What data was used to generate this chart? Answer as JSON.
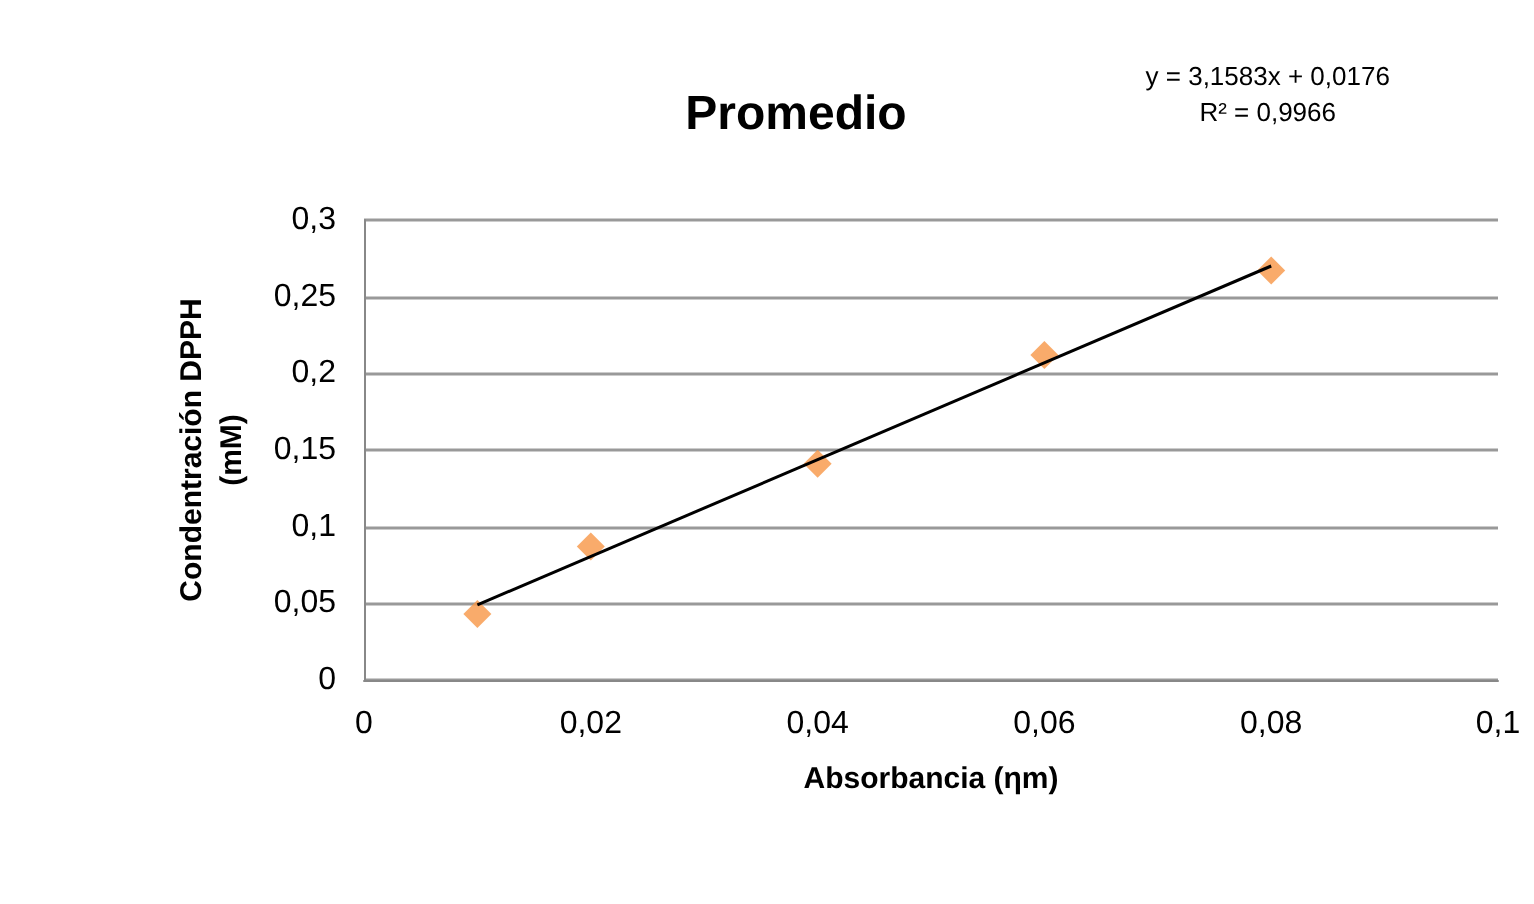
{
  "chart_data": {
    "type": "scatter",
    "title": "Promedio",
    "xlabel": "Absorbancia (ηm)",
    "ylabel": "Condentración DPPH (mM)",
    "annotations": [
      "y = 3,1583x + 0,0176",
      "R² = 0,9966"
    ],
    "marker": "diamond",
    "grid": "y",
    "xlim": [
      0,
      0.1
    ],
    "xticks": [
      {
        "value": 0,
        "label": "0"
      },
      {
        "value": 0.02,
        "label": "0,02"
      },
      {
        "value": 0.04,
        "label": "0,04"
      },
      {
        "value": 0.06,
        "label": "0,06"
      },
      {
        "value": 0.08,
        "label": "0,08"
      },
      {
        "value": 0.1,
        "label": "0,1"
      }
    ],
    "ylim": [
      0,
      0.3
    ],
    "yticks": [
      {
        "value": 0,
        "label": "0"
      },
      {
        "value": 0.05,
        "label": "0,05"
      },
      {
        "value": 0.1,
        "label": "0,1"
      },
      {
        "value": 0.15,
        "label": "0,15"
      },
      {
        "value": 0.2,
        "label": "0,2"
      },
      {
        "value": 0.25,
        "label": "0,25"
      },
      {
        "value": 0.3,
        "label": "0,3"
      }
    ],
    "series": [
      {
        "color": "#f79646",
        "x": [
          0.01,
          0.02,
          0.04,
          0.06,
          0.08
        ],
        "values": [
          0.043,
          0.087,
          0.141,
          0.212,
          0.267
        ]
      },
      {
        "type": "line",
        "color": "#000000",
        "x": [
          0.01,
          0.08
        ],
        "values": [
          0.049,
          0.27
        ],
        "line_style": "solid",
        "marker": "none"
      }
    ]
  }
}
